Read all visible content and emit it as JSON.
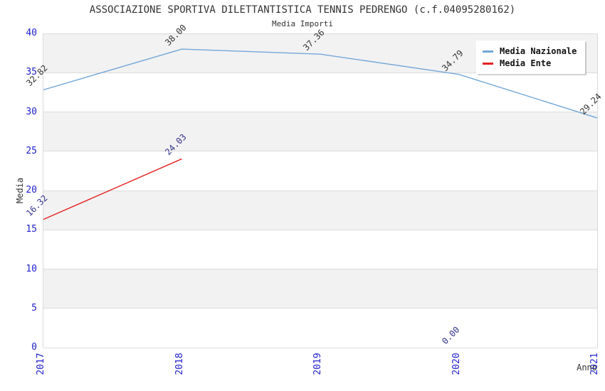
{
  "header": {
    "title": "ASSOCIAZIONE SPORTIVA DILETTANTISTICA TENNIS PEDRENGO (c.f.04095280162)",
    "subtitle": "Media Importi"
  },
  "chart_data": {
    "type": "line",
    "title": "ASSOCIAZIONE SPORTIVA DILETTANTISTICA TENNIS PEDRENGO (c.f.04095280162)",
    "subtitle": "Media Importi",
    "x": [
      "2017",
      "2018",
      "2019",
      "2020",
      "2021"
    ],
    "series": [
      {
        "name": "Media Nazionale",
        "color": "#74a7d8",
        "label_color": "#333333",
        "values": [
          32.82,
          38.0,
          37.36,
          34.79,
          29.24
        ]
      },
      {
        "name": "Media Ente",
        "color": "#e32222",
        "label_color": "#34348c",
        "values": [
          16.32,
          24.03,
          null,
          0.0,
          null
        ]
      }
    ],
    "ylim": [
      0,
      40
    ],
    "y_ticks": [
      0,
      5,
      10,
      15,
      20,
      25,
      30,
      35,
      40
    ],
    "ylabel": "Media",
    "xlabel": "Anno",
    "grid": "horizontal-bands",
    "band_colors": [
      "#ffffff",
      "#f2f2f2"
    ],
    "gridline_color": "#dcdcdc",
    "tick_color": "#2222cc",
    "legend_position": "top-right",
    "point_label_format": "2-decimals"
  }
}
